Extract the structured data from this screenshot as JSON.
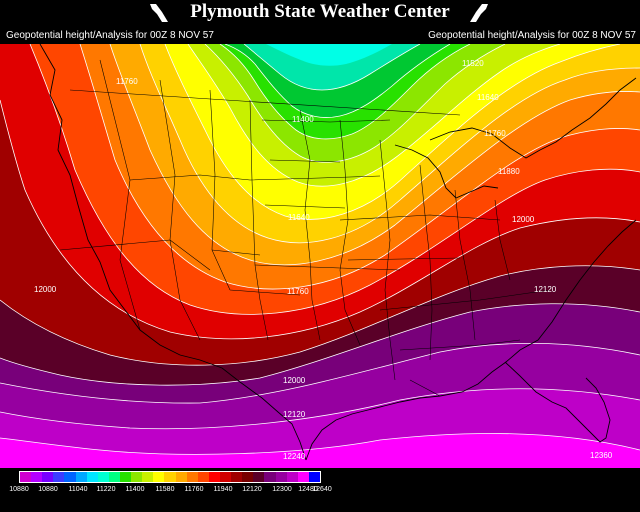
{
  "header": {
    "title": "Plymouth State Weather Center",
    "subtitle_left": "Geopotential height/Analysis for 00Z 8 NOV 57",
    "subtitle_right": "Geopotential height/Analysis for 00Z 8 NOV 57",
    "logo_icon": "psu-flag-icon"
  },
  "map": {
    "field": "Geopotential height",
    "contour_labels": [
      "11520",
      "11640",
      "11400",
      "11760",
      "11760",
      "11880",
      "11640",
      "12000",
      "11760",
      "12000",
      "12120",
      "12000",
      "12120",
      "12240",
      "12360"
    ]
  },
  "colorbar": {
    "labels": [
      "10880",
      "10880",
      "11040",
      "11220",
      "11400",
      "11580",
      "11760",
      "11940",
      "12120",
      "12300",
      "12480",
      "12640"
    ],
    "colors": [
      "#d000d0",
      "#b400ff",
      "#7800ff",
      "#3c3cff",
      "#0064ff",
      "#00a8ff",
      "#00e6ff",
      "#00ffd2",
      "#00ff82",
      "#28e100",
      "#8ce600",
      "#c8f000",
      "#ffff00",
      "#ffd200",
      "#ffaa00",
      "#ff7800",
      "#ff4600",
      "#ff0000",
      "#d20000",
      "#a00000",
      "#780000",
      "#5a0028",
      "#78007a",
      "#9600a0",
      "#be00c8",
      "#ff00ff",
      "#0000ff"
    ]
  }
}
